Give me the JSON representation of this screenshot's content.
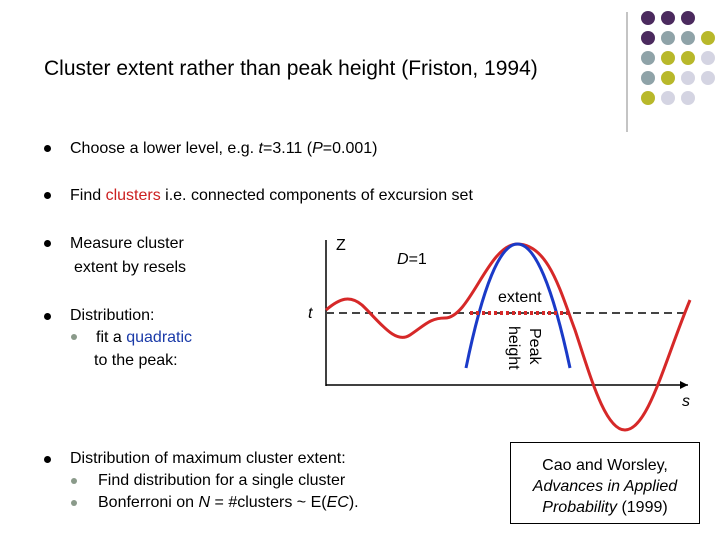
{
  "title": "Cluster extent rather than peak height (Friston, 1994)",
  "items": [
    [
      "Choose a lower level, e.g. ",
      "t",
      "=3.11 (",
      "P",
      "=0.001)"
    ],
    [
      "Find ",
      "clusters",
      " i.e. connected components of excursion set"
    ],
    [
      "Measure cluster",
      "extent by resels"
    ],
    [
      "Distribution:"
    ],
    [
      "fit a ",
      "quadratic",
      "to the peak:"
    ],
    [
      "Distribution of maximum cluster extent:"
    ],
    [
      "Find distribution for a single cluster"
    ],
    [
      "Bonferroni on ",
      "N",
      " = #clusters ~ E(",
      "EC",
      ")."
    ]
  ],
  "figure": {
    "z": "Z",
    "d": "D",
    "d_value": "=1",
    "extent": "extent",
    "t": "t",
    "peak": "Peak",
    "height": "height",
    "s": "s"
  },
  "citation": [
    "Cao and Worsley,",
    "Advances in Applied",
    "Probability",
    " (1999)"
  ]
}
